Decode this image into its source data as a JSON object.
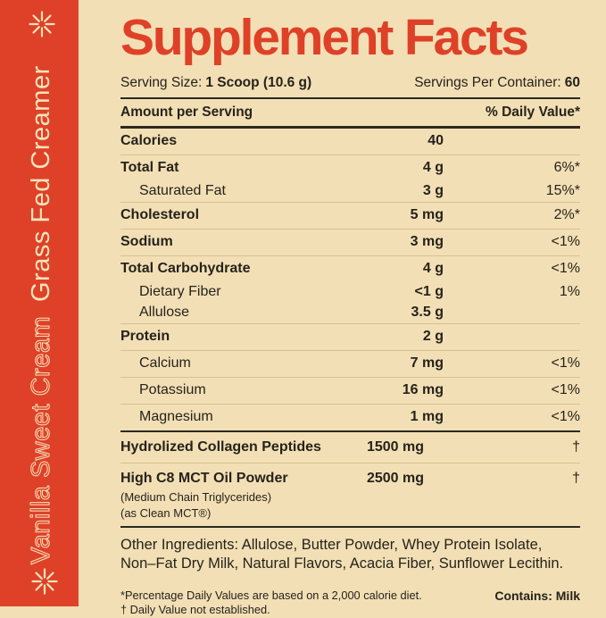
{
  "colors": {
    "red": "#DE4128",
    "cream": "#F3DFB5",
    "ink": "#25231B",
    "divider_light": "#D8C08F",
    "divider_dark": "#2B2A1E",
    "sidebar_text": "#F6E3BA"
  },
  "sidebar": {
    "flavor": "Vanilla Sweet Cream",
    "product_name": "Grass Fed Creamer",
    "icon": "starburst-asterisk"
  },
  "header": {
    "title": "Supplement Facts"
  },
  "serving": {
    "size_label": "Serving Size:",
    "size_value": "1 Scoop (10.6 g)",
    "per_container_label": "Servings Per Container:",
    "per_container_value": "60"
  },
  "table": {
    "col_left": "Amount per Serving",
    "col_right": "% Daily Value*",
    "groups": [
      [
        {
          "label": "Calories",
          "amount": "40",
          "dv": "",
          "bold": true
        }
      ],
      [
        {
          "label": "Total Fat",
          "amount": "4 g",
          "dv": "6%*",
          "bold": true
        },
        {
          "label": "Saturated Fat",
          "amount": "3 g",
          "dv": "15%*",
          "indent": true,
          "sub": true
        }
      ],
      [
        {
          "label": "Cholesterol",
          "amount": "5 mg",
          "dv": "2%*",
          "bold": true
        }
      ],
      [
        {
          "label": "Sodium",
          "amount": "3 mg",
          "dv": "<1%",
          "bold": true
        }
      ],
      [
        {
          "label": "Total Carbohydrate",
          "amount": "4 g",
          "dv": "<1%",
          "bold": true
        },
        {
          "label": "Dietary Fiber",
          "amount": "<1 g",
          "dv": "1%",
          "indent": true,
          "sub": true
        },
        {
          "label": "Allulose",
          "amount": "3.5 g",
          "dv": "",
          "indent": true,
          "sub": true
        }
      ],
      [
        {
          "label": "Protein",
          "amount": "2 g",
          "dv": "",
          "bold": true
        }
      ],
      [
        {
          "label": "Calcium",
          "amount": "7 mg",
          "dv": "<1%",
          "indent": true
        }
      ],
      [
        {
          "label": "Potassium",
          "amount": "16 mg",
          "dv": "<1%",
          "indent": true
        }
      ],
      [
        {
          "label": "Magnesium",
          "amount": "1 mg",
          "dv": "<1%",
          "indent": true
        }
      ]
    ],
    "extras": [
      {
        "label": "Hydrolized Collagen Peptides",
        "amount": "1500 mg",
        "dv": "†",
        "subnotes": []
      },
      {
        "label": "High C8 MCT Oil Powder",
        "amount": "2500 mg",
        "dv": "†",
        "subnotes": [
          "(Medium Chain Triglycerides)",
          "(as Clean MCT®)"
        ]
      }
    ]
  },
  "other_ingredients": "Other Ingredients: Allulose, Butter Powder, Whey Protein Isolate, Non–Fat Dry Milk, Natural Flavors, Acacia Fiber, Sunflower Lecithin.",
  "footnotes": {
    "line1": "*Percentage Daily Values are based on a 2,000 calorie diet.",
    "line2": "† Daily Value not established.",
    "contains": "Contains: Milk"
  }
}
